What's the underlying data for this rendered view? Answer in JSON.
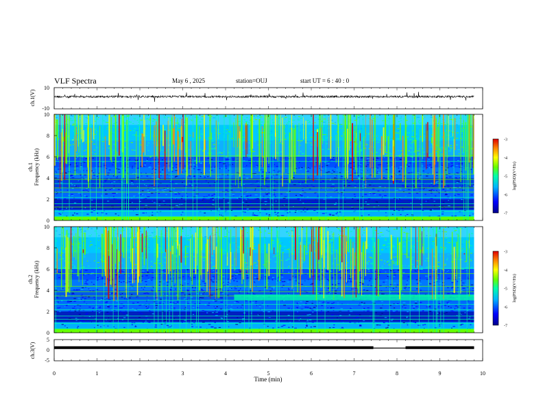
{
  "header": {
    "title": "VLF Spectra",
    "date": "May 6 , 2025",
    "station": "station=OUJ",
    "start_time": "start UT = 6 : 40 : 0"
  },
  "colors": {
    "spectrogram_scale": [
      "#00008b",
      "#0000ff",
      "#00b4ff",
      "#00ffaa",
      "#66ff00",
      "#ffff00",
      "#ff8c00",
      "#e00000"
    ],
    "waveform": "#000000"
  },
  "chart_data": [
    {
      "type": "line",
      "name": "waveform-ch1",
      "ylabel": "ch.1(V)",
      "ylim": [
        -10,
        10
      ],
      "yticks": [
        "10",
        "-10"
      ],
      "description_level": 1.5
    },
    {
      "type": "heatmap",
      "name": "spectrogram-ch1",
      "ylabel_line1": "ch.1",
      "ylabel_line2": "Frequency (kHz)",
      "ylim": [
        0,
        10
      ],
      "yticks": [
        "0",
        "2",
        "4",
        "6",
        "8",
        "10"
      ],
      "colorbar": {
        "label": "log(PSD)(V²/Hz)",
        "range": [
          -7,
          -3
        ],
        "ticks": [
          "-3",
          "-4",
          "-5",
          "-6",
          "-7"
        ]
      }
    },
    {
      "type": "heatmap",
      "name": "spectrogram-ch2",
      "ylabel_line1": "ch.2",
      "ylabel_line2": "Frequency (kHz)",
      "ylim": [
        0,
        10
      ],
      "yticks": [
        "0",
        "2",
        "4",
        "6",
        "8",
        "10"
      ],
      "colorbar": {
        "label": "log(PSD)(V²/Hz)",
        "range": [
          -7,
          -3
        ],
        "ticks": [
          "-3",
          "-4",
          "-5",
          "-6",
          "-7"
        ]
      }
    },
    {
      "type": "line",
      "name": "ch3-level",
      "ylabel": "ch.3(V)",
      "ylim": [
        -5,
        5
      ],
      "yticks": [
        "5",
        "0",
        "-5"
      ],
      "segments": [
        {
          "x": [
            0.0,
            7.45
          ],
          "y": 1.2
        },
        {
          "x": [
            7.45,
            8.2
          ],
          "y": 1.0
        },
        {
          "x": [
            8.2,
            9.8
          ],
          "y": 1.2
        }
      ]
    }
  ],
  "xaxis": {
    "label": "Time (min)",
    "xlim": [
      0,
      10
    ],
    "ticks": [
      "0",
      "1",
      "2",
      "3",
      "4",
      "5",
      "6",
      "7",
      "8",
      "9",
      "10"
    ],
    "data_end": 9.8
  }
}
